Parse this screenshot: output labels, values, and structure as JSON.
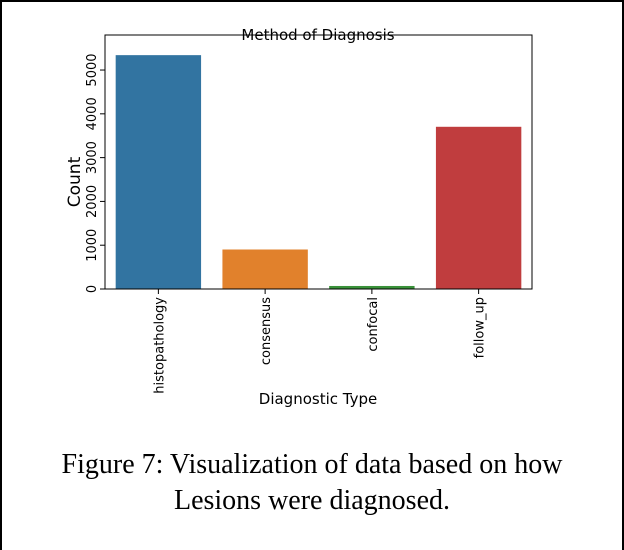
{
  "chart_data": {
    "type": "bar",
    "title": "Method of Diagnosis",
    "x_label": "Diagnostic Type",
    "y_label": "Count",
    "categories": [
      "histopathology",
      "consensus",
      "confocal",
      "follow_up"
    ],
    "values": [
      5340,
      902,
      69,
      3704
    ],
    "colors": [
      "#3274a1",
      "#e1812c",
      "#3a923a",
      "#c03d3e"
    ],
    "ylim": [
      0,
      5800
    ],
    "yticks": [
      0,
      1000,
      2000,
      3000,
      4000,
      5000
    ],
    "grid": false
  },
  "caption": "Figure 7: Visualization of data based on how Lesions were diagnosed."
}
